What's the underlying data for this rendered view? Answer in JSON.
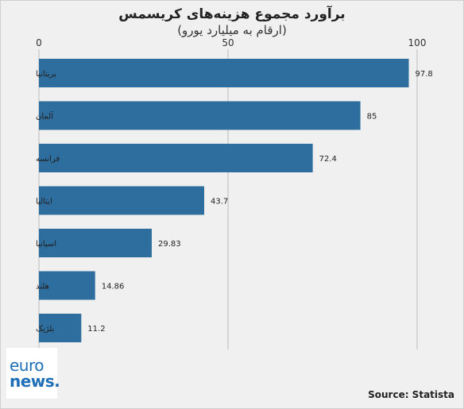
{
  "chart_data": {
    "type": "bar",
    "orientation": "horizontal",
    "title": "برآورد مجموع هزینه‌های کریسمس",
    "subtitle": "(ارقام به میلیارد یورو)",
    "categories": [
      "بریتانیا",
      "آلمان",
      "فرانسه",
      "ایتالیا",
      "اسپانیا",
      "هلند",
      "بلژیک"
    ],
    "values": [
      97.8,
      85,
      72.4,
      43.7,
      29.83,
      14.86,
      11.2
    ],
    "value_labels": [
      "97.8",
      "85",
      "72.4",
      "43.7",
      "29.83",
      "14.86",
      "11.2"
    ],
    "xlim": [
      0,
      100
    ],
    "xticks": [
      "0",
      "50",
      "100"
    ],
    "xtick_values": [
      0,
      50,
      100
    ],
    "grid": true,
    "bar_color": "#2e6e9e"
  },
  "logo": {
    "line1": "euro",
    "line2": "news."
  },
  "source": "Source: Statista"
}
